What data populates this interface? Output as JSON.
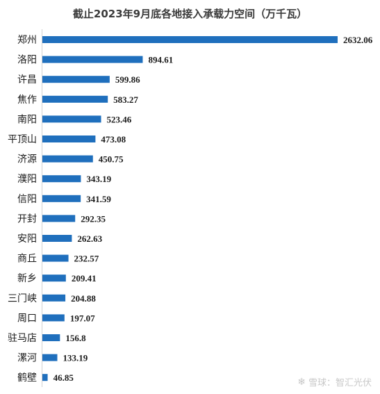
{
  "chart_data": {
    "type": "bar",
    "orientation": "horizontal",
    "title": "截止2023年9月底各地接入承载力空间（万千瓦）",
    "categories": [
      "郑州",
      "洛阳",
      "许昌",
      "焦作",
      "南阳",
      "平顶山",
      "济源",
      "濮阳",
      "信阳",
      "开封",
      "安阳",
      "商丘",
      "新乡",
      "三门峡",
      "周口",
      "驻马店",
      "漯河",
      "鹤壁"
    ],
    "value_labels": [
      "2632.06",
      "894.61",
      "599.86",
      "583.27",
      "523.46",
      "473.08",
      "450.75",
      "343.19",
      "341.59",
      "292.35",
      "262.63",
      "232.57",
      "209.41",
      "204.88",
      "197.07",
      "156.8",
      "133.19",
      "46.85"
    ],
    "values": [
      2632.06,
      894.61,
      599.86,
      583.27,
      523.46,
      473.08,
      450.75,
      343.19,
      341.59,
      292.35,
      262.63,
      232.57,
      209.41,
      204.88,
      197.07,
      156.8,
      133.19,
      46.85
    ],
    "bar_color": "#1f6fbd",
    "xlim": [
      0,
      2632.06
    ]
  },
  "watermark": {
    "logo_icon": "snowball-logo-icon",
    "text": "雪球：智汇光伏"
  }
}
